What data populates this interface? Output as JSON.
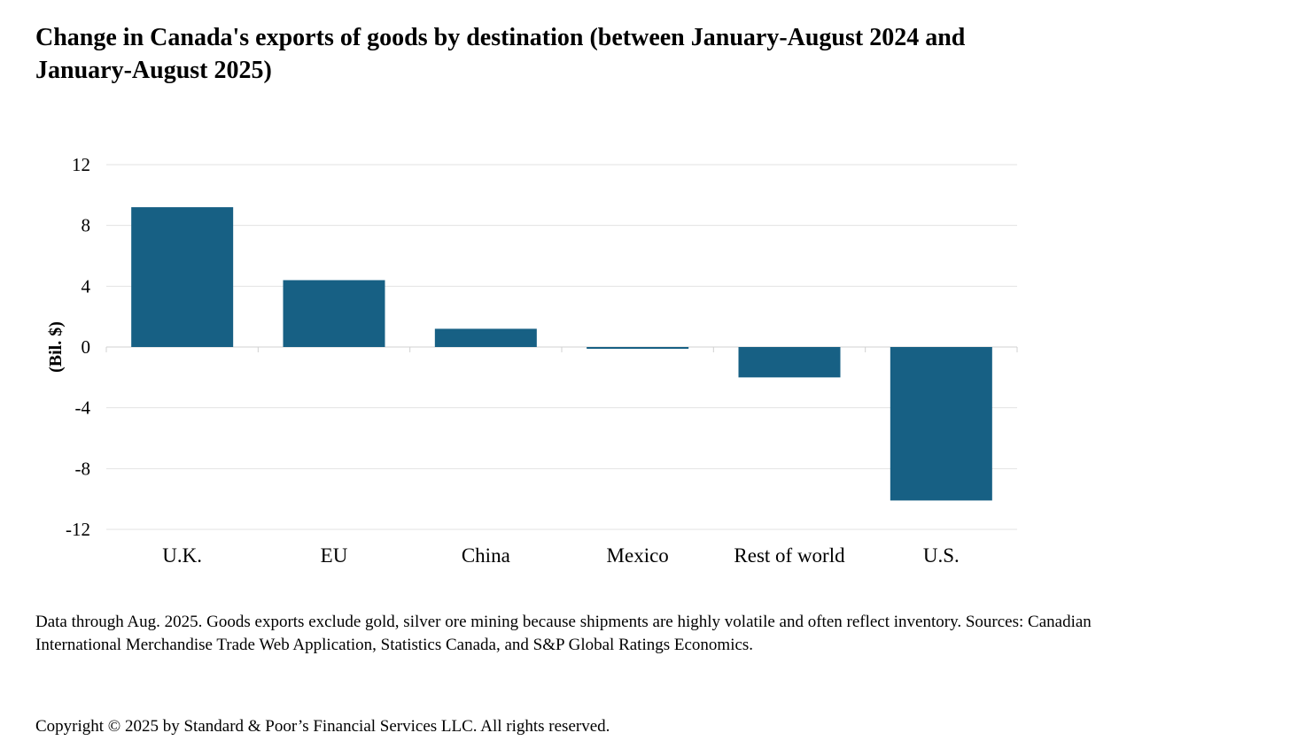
{
  "chart_data": {
    "type": "bar",
    "title": "Change in Canada's exports of goods by destination (between January-August 2024 and January-August 2025)",
    "xlabel": "",
    "ylabel": "(Bil. $)",
    "categories": [
      "U.K.",
      "EU",
      "China",
      "Mexico",
      "Rest of world",
      "U.S."
    ],
    "values": [
      9.2,
      4.4,
      1.2,
      -0.1,
      -2.0,
      -10.1
    ],
    "ylim": [
      -12,
      12
    ],
    "yticks": [
      12,
      8,
      4,
      0,
      -4,
      -8,
      -12
    ],
    "ytick_labels": [
      "12",
      "8",
      "4",
      "0",
      "-4",
      "-8",
      "-12"
    ],
    "grid": true,
    "bar_color": "#176084",
    "grid_color": "#e3e3e3"
  },
  "footnote": "Data through Aug. 2025. Goods exports exclude gold, silver ore mining because shipments are highly volatile and often reflect inventory. Sources: Canadian International Merchandise Trade Web Application, Statistics Canada, and S&P Global Ratings Economics.",
  "copyright": "Copyright © 2025 by Standard & Poor’s Financial Services LLC. All rights reserved."
}
